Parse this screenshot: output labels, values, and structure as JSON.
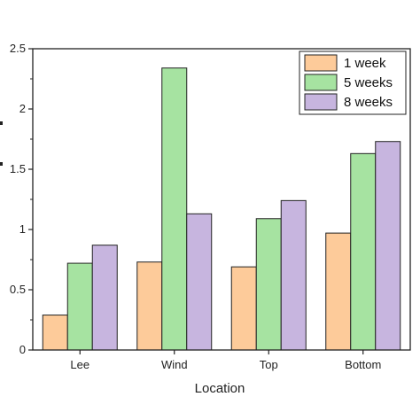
{
  "chart_data": {
    "type": "bar",
    "title": "",
    "xlabel": "Location",
    "ylabel": "",
    "categories": [
      "Lee",
      "Wind",
      "Top",
      "Bottom"
    ],
    "series": [
      {
        "name": "1 week",
        "values": [
          0.29,
          0.73,
          0.69,
          0.97
        ],
        "color": "#FDCB9A"
      },
      {
        "name": "5 weeks",
        "values": [
          0.72,
          2.34,
          1.09,
          1.63
        ],
        "color": "#A6E3A1"
      },
      {
        "name": "8 weeks",
        "values": [
          0.87,
          1.13,
          1.24,
          1.73
        ],
        "color": "#C7B5DF"
      }
    ],
    "ylim": [
      0,
      2.5
    ],
    "yticks": [
      "0",
      "0.5",
      "1",
      "1.5",
      "2",
      "2.5"
    ],
    "ytick_values": [
      0,
      0.5,
      1,
      1.5,
      2,
      2.5
    ],
    "grid": false,
    "legend_position": "top-right"
  }
}
